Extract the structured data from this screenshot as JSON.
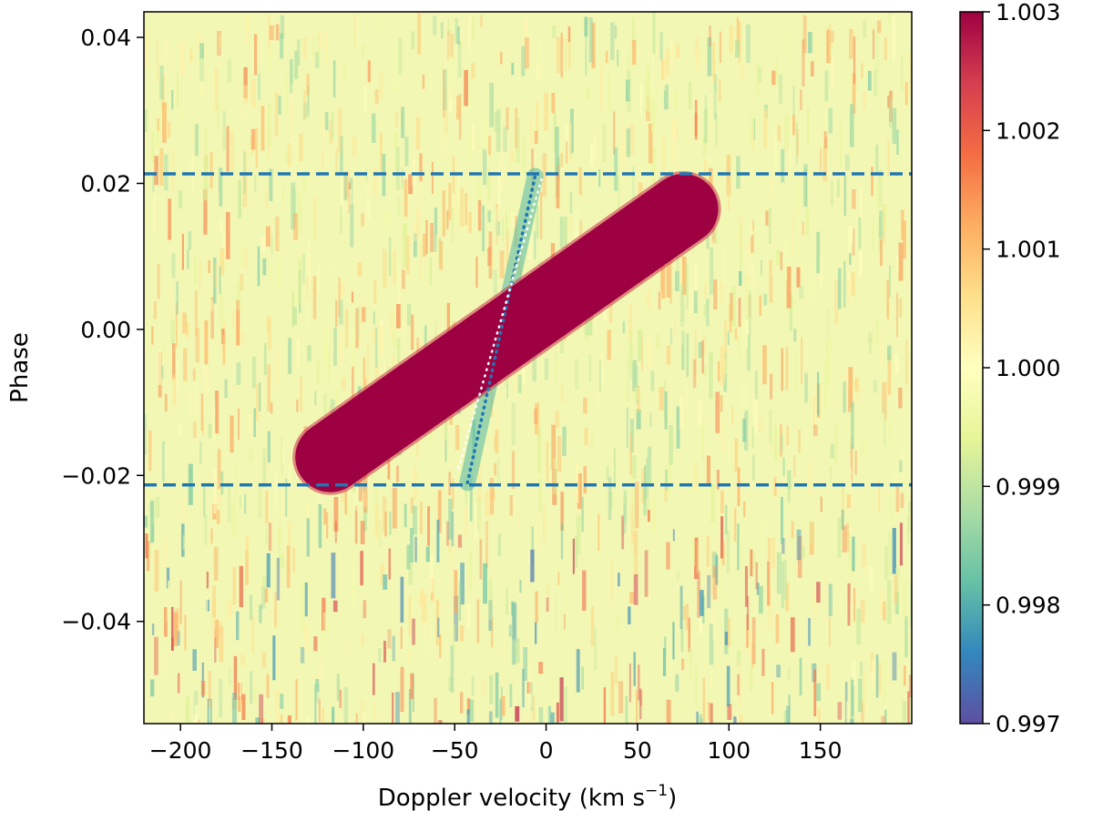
{
  "chart_data": {
    "type": "heatmap",
    "title": "",
    "xlabel": "Doppler velocity (km s",
    "xlabel_sup": "−1",
    "xlabel_close": ")",
    "ylabel": "Phase",
    "xlim": [
      -220,
      200
    ],
    "ylim": [
      -0.054,
      0.0435
    ],
    "xticks": [
      -200,
      -150,
      -100,
      -50,
      0,
      50,
      100,
      150
    ],
    "xtick_labels": [
      "−200",
      "−150",
      "−100",
      "−50",
      "0",
      "50",
      "100",
      "150"
    ],
    "yticks": [
      -0.04,
      -0.02,
      0.0,
      0.02,
      0.04
    ],
    "ytick_labels": [
      "−0.04",
      "−0.02",
      "0.00",
      "0.02",
      "0.04"
    ],
    "grid": false,
    "colormap": "Spectral_r",
    "color_range": [
      0.997,
      1.003
    ],
    "colorbar_ticks": [
      0.997,
      0.998,
      0.999,
      1.0,
      1.001,
      1.002,
      1.003
    ],
    "colorbar_tick_labels": [
      "0.997",
      "0.998",
      "0.999",
      "1.000",
      "1.001",
      "1.002",
      "1.003"
    ],
    "background_level": 1.0,
    "planet_trail": {
      "value": 1.003,
      "start": {
        "velocity": -118,
        "phase": -0.0175
      },
      "end": {
        "velocity": 75,
        "phase": 0.0165
      },
      "width_phase": 0.003
    },
    "stellar_shadow": {
      "value": 0.9995,
      "start": {
        "velocity": -43,
        "phase": -0.021
      },
      "end": {
        "velocity": -6,
        "phase": 0.021
      }
    },
    "transit_limits": {
      "style": "dashed",
      "color": "#1f77b4",
      "phases": [
        0.0213,
        -0.0213
      ]
    },
    "model_lines": [
      {
        "style": "dotted",
        "color": "#1f77b4",
        "points": [
          {
            "velocity": -43,
            "phase": -0.021
          },
          {
            "velocity": -6,
            "phase": 0.021
          }
        ]
      },
      {
        "style": "dotted",
        "color": "#ffffff",
        "points": [
          {
            "velocity": -48,
            "phase": -0.019
          },
          {
            "velocity": -2,
            "phase": 0.021
          }
        ]
      }
    ]
  }
}
